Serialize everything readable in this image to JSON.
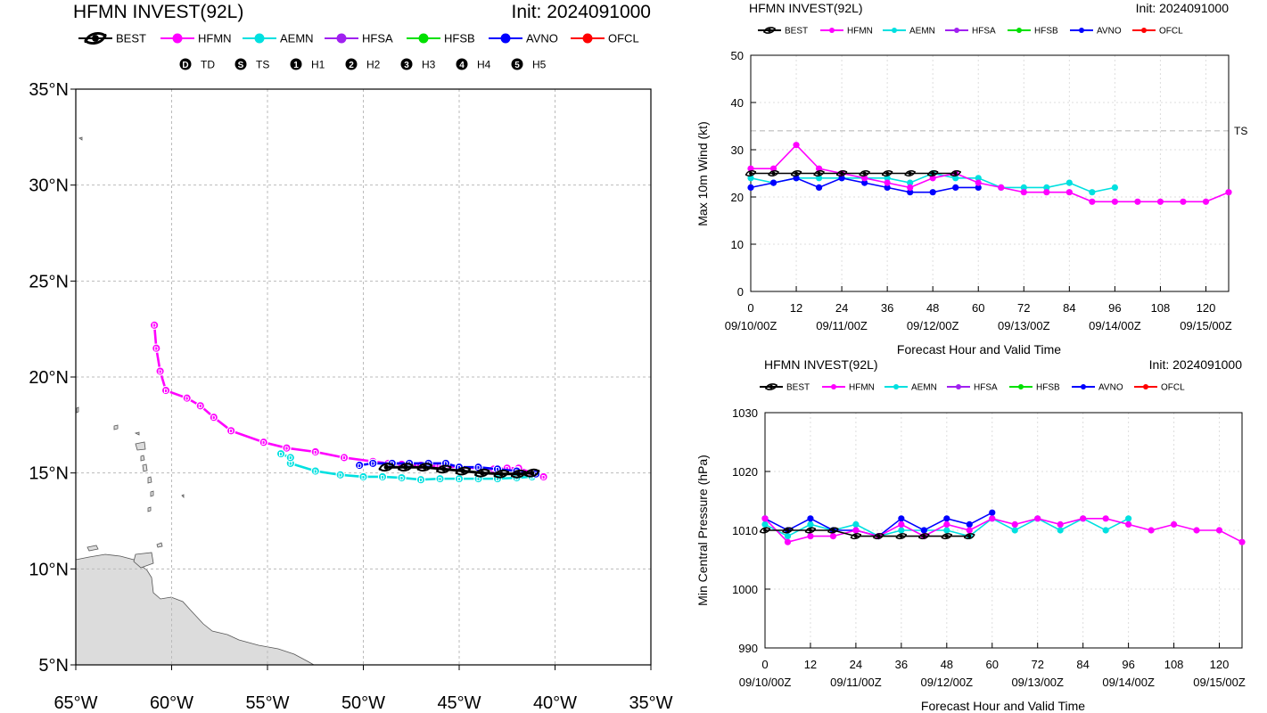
{
  "map": {
    "title": "HFMN INVEST(92L)",
    "init": "Init: 2024091000",
    "legend": [
      "BEST",
      "HFMN",
      "AEMN",
      "HFSA",
      "HFSB",
      "AVNO",
      "OFCL"
    ],
    "intensity_legend": [
      {
        "sym": "D",
        "label": "TD"
      },
      {
        "sym": "S",
        "label": "TS"
      },
      {
        "sym": "1",
        "label": "H1"
      },
      {
        "sym": "2",
        "label": "H2"
      },
      {
        "sym": "3",
        "label": "H3"
      },
      {
        "sym": "4",
        "label": "H4"
      },
      {
        "sym": "5",
        "label": "H5"
      }
    ],
    "lon_labels": [
      "65°W",
      "60°W",
      "55°W",
      "50°W",
      "45°W",
      "40°W",
      "35°W"
    ],
    "lat_labels": [
      "5°N",
      "10°N",
      "15°N",
      "20°N",
      "25°N",
      "30°N",
      "35°N"
    ]
  },
  "colors": {
    "BEST": "#000000",
    "HFMN": "#ff00ff",
    "AEMN": "#00e0e0",
    "HFSA": "#a020f0",
    "HFSB": "#00e000",
    "AVNO": "#0000ff",
    "OFCL": "#ff0000"
  },
  "wind": {
    "title": "HFMN INVEST(92L)",
    "init": "Init: 2024091000",
    "ylabel": "Max 10m Wind (kt)",
    "xlabel": "Forecast Hour and Valid Time",
    "ts_label": "TS"
  },
  "pres": {
    "title": "HFMN INVEST(92L)",
    "init": "Init: 2024091000",
    "ylabel": "Min Central Pressure (hPa)",
    "xlabel": "Forecast Hour and Valid Time"
  },
  "chart_data": [
    {
      "type": "scatter",
      "title": "HFMN INVEST(92L)",
      "subtitle": "Init: 2024091000",
      "xlim": [
        -65,
        -35
      ],
      "ylim": [
        5,
        35
      ],
      "series": [
        {
          "name": "BEST",
          "points": [
            [
              -48.8,
              15.3
            ],
            [
              -47.8,
              15.3
            ],
            [
              -46.8,
              15.3
            ],
            [
              -45.8,
              15.2
            ],
            [
              -44.8,
              15.1
            ],
            [
              -43.8,
              15.0
            ],
            [
              -42.8,
              14.95
            ],
            [
              -41.9,
              14.95
            ],
            [
              -41.2,
              15.0
            ]
          ]
        },
        {
          "name": "HFMN",
          "points": [
            [
              -40.6,
              14.8
            ],
            [
              -41.2,
              15.0
            ],
            [
              -41.9,
              15.25
            ],
            [
              -42.5,
              15.25
            ],
            [
              -43.2,
              15.2
            ],
            [
              -44.0,
              15.25
            ],
            [
              -45.0,
              15.3
            ],
            [
              -46.0,
              15.35
            ],
            [
              -47.0,
              15.4
            ],
            [
              -48.0,
              15.45
            ],
            [
              -48.7,
              15.5
            ],
            [
              -49.5,
              15.6
            ],
            [
              -51.0,
              15.8
            ],
            [
              -52.5,
              16.1
            ],
            [
              -54.0,
              16.3
            ],
            [
              -55.2,
              16.6
            ],
            [
              -56.9,
              17.2
            ],
            [
              -57.8,
              17.9
            ],
            [
              -58.5,
              18.5
            ],
            [
              -59.2,
              18.9
            ],
            [
              -60.3,
              19.3
            ],
            [
              -60.6,
              20.3
            ],
            [
              -60.8,
              21.5
            ],
            [
              -60.9,
              22.7
            ]
          ]
        },
        {
          "name": "AEMN",
          "points": [
            [
              -41.2,
              14.8
            ],
            [
              -42.0,
              14.75
            ],
            [
              -43.0,
              14.7
            ],
            [
              -44.0,
              14.7
            ],
            [
              -45.0,
              14.7
            ],
            [
              -46.0,
              14.7
            ],
            [
              -47.0,
              14.65
            ],
            [
              -48.0,
              14.75
            ],
            [
              -49.0,
              14.8
            ],
            [
              -50.0,
              14.8
            ],
            [
              -51.2,
              14.9
            ],
            [
              -52.5,
              15.1
            ],
            [
              -53.8,
              15.5
            ],
            [
              -53.8,
              15.8
            ],
            [
              -54.3,
              16.0
            ]
          ]
        },
        {
          "name": "AVNO",
          "points": [
            [
              -41.0,
              14.95
            ],
            [
              -42.0,
              15.1
            ],
            [
              -43.0,
              15.2
            ],
            [
              -44.0,
              15.3
            ],
            [
              -45.0,
              15.3
            ],
            [
              -45.7,
              15.5
            ],
            [
              -46.6,
              15.5
            ],
            [
              -47.6,
              15.5
            ],
            [
              -48.5,
              15.5
            ],
            [
              -49.5,
              15.5
            ],
            [
              -50.2,
              15.4
            ]
          ]
        }
      ]
    },
    {
      "type": "line",
      "title": "HFMN INVEST(92L)",
      "subtitle": "Init: 2024091000",
      "xlabel": "Forecast Hour and Valid Time",
      "ylabel": "Max 10m Wind (kt)",
      "xlim": [
        0,
        126
      ],
      "ylim": [
        0,
        50
      ],
      "xticks": [
        0,
        12,
        24,
        36,
        48,
        60,
        72,
        84,
        96,
        108,
        120
      ],
      "valid_time_labels": [
        {
          "x": 0,
          "label": "09/10/00Z"
        },
        {
          "x": 24,
          "label": "09/11/00Z"
        },
        {
          "x": 48,
          "label": "09/12/00Z"
        },
        {
          "x": 72,
          "label": "09/13/00Z"
        },
        {
          "x": 96,
          "label": "09/14/00Z"
        },
        {
          "x": 120,
          "label": "09/15/00Z"
        }
      ],
      "threshold": {
        "y": 34,
        "label": "TS"
      },
      "series": [
        {
          "name": "BEST",
          "x": [
            0,
            6,
            12,
            18,
            24,
            30,
            36,
            42,
            48,
            54
          ],
          "values": [
            25,
            25,
            25,
            25,
            25,
            25,
            25,
            25,
            25,
            25
          ]
        },
        {
          "name": "HFMN",
          "x": [
            0,
            6,
            12,
            18,
            24,
            30,
            36,
            42,
            48,
            54,
            60,
            66,
            72,
            78,
            84,
            90,
            96,
            102,
            108,
            114,
            120,
            126
          ],
          "values": [
            26,
            26,
            31,
            26,
            25,
            24,
            23,
            22,
            24,
            25,
            23,
            22,
            21,
            21,
            21,
            19,
            19,
            19,
            19,
            19,
            19,
            21
          ]
        },
        {
          "name": "AEMN",
          "x": [
            0,
            6,
            12,
            18,
            24,
            30,
            36,
            42,
            48,
            54,
            60,
            66,
            72,
            78,
            84,
            90,
            96
          ],
          "values": [
            24,
            23,
            24,
            24,
            24,
            24,
            24,
            23,
            25,
            24,
            24,
            22,
            22,
            22,
            23,
            21,
            22
          ]
        },
        {
          "name": "AVNO",
          "x": [
            0,
            6,
            12,
            18,
            24,
            30,
            36,
            42,
            48,
            54,
            60
          ],
          "values": [
            22,
            23,
            24,
            22,
            24,
            23,
            22,
            21,
            21,
            22,
            22
          ]
        }
      ]
    },
    {
      "type": "line",
      "title": "HFMN INVEST(92L)",
      "subtitle": "Init: 2024091000",
      "xlabel": "Forecast Hour and Valid Time",
      "ylabel": "Min Central Pressure (hPa)",
      "xlim": [
        0,
        126
      ],
      "ylim": [
        990,
        1030
      ],
      "xticks": [
        0,
        12,
        24,
        36,
        48,
        60,
        72,
        84,
        96,
        108,
        120
      ],
      "valid_time_labels": [
        {
          "x": 0,
          "label": "09/10/00Z"
        },
        {
          "x": 24,
          "label": "09/11/00Z"
        },
        {
          "x": 48,
          "label": "09/12/00Z"
        },
        {
          "x": 72,
          "label": "09/13/00Z"
        },
        {
          "x": 96,
          "label": "09/14/00Z"
        },
        {
          "x": 120,
          "label": "09/15/00Z"
        }
      ],
      "series": [
        {
          "name": "BEST",
          "x": [
            0,
            6,
            12,
            18,
            24,
            30,
            36,
            42,
            48,
            54
          ],
          "values": [
            1010,
            1010,
            1010,
            1010,
            1009,
            1009,
            1009,
            1009,
            1009,
            1009
          ]
        },
        {
          "name": "HFMN",
          "x": [
            0,
            6,
            12,
            18,
            24,
            30,
            36,
            42,
            48,
            54,
            60,
            66,
            72,
            78,
            84,
            90,
            96,
            102,
            108,
            114,
            120,
            126
          ],
          "values": [
            1012,
            1008,
            1009,
            1009,
            1010,
            1009,
            1011,
            1009,
            1011,
            1010,
            1012,
            1011,
            1012,
            1011,
            1012,
            1012,
            1011,
            1010,
            1011,
            1010,
            1010,
            1008
          ]
        },
        {
          "name": "AEMN",
          "x": [
            0,
            6,
            12,
            18,
            24,
            30,
            36,
            42,
            48,
            54,
            60,
            66,
            72,
            78,
            84,
            90,
            96
          ],
          "values": [
            1011,
            1009,
            1011,
            1010,
            1011,
            1009,
            1010,
            1010,
            1010,
            1009,
            1012,
            1010,
            1012,
            1010,
            1012,
            1010,
            1012
          ]
        },
        {
          "name": "AVNO",
          "x": [
            0,
            6,
            12,
            18,
            24,
            30,
            36,
            42,
            48,
            54,
            60
          ],
          "values": [
            1012,
            1010,
            1012,
            1010,
            1010,
            1009,
            1012,
            1010,
            1012,
            1011,
            1013
          ]
        }
      ]
    }
  ]
}
